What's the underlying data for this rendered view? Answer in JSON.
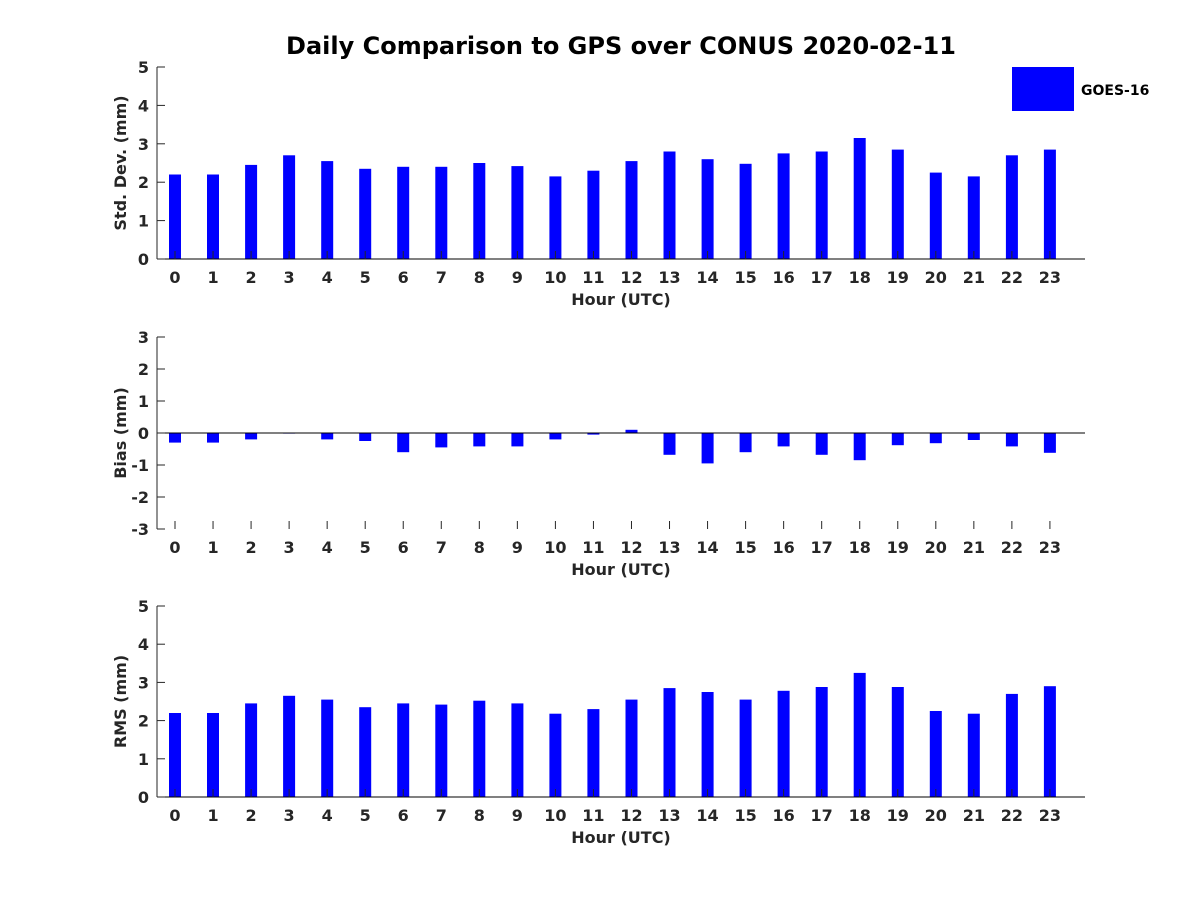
{
  "colors": {
    "bar": "#0000ff",
    "axis": "#262626"
  },
  "chart_data": {
    "title": "Daily Comparison to GPS over CONUS 2020-02-11",
    "legend": {
      "label": "GOES-16",
      "placement": "top-right"
    },
    "panels": [
      {
        "type": "bar",
        "ylabel": "Std. Dev. (mm)",
        "xlabel": "Hour (UTC)",
        "ylim": [
          0,
          5
        ],
        "yticks": [
          0,
          1,
          2,
          3,
          4,
          5
        ],
        "categories": [
          "0",
          "1",
          "2",
          "3",
          "4",
          "5",
          "6",
          "7",
          "8",
          "9",
          "10",
          "11",
          "12",
          "13",
          "14",
          "15",
          "16",
          "17",
          "18",
          "19",
          "20",
          "21",
          "22",
          "23"
        ],
        "series": [
          {
            "name": "GOES-16",
            "values": [
              2.2,
              2.2,
              2.45,
              2.7,
              2.55,
              2.35,
              2.4,
              2.4,
              2.5,
              2.42,
              2.15,
              2.3,
              2.55,
              2.8,
              2.6,
              2.48,
              2.75,
              2.8,
              3.15,
              2.85,
              2.25,
              2.15,
              2.7,
              2.85
            ]
          }
        ]
      },
      {
        "type": "bar",
        "ylabel": "Bias (mm)",
        "xlabel": "Hour (UTC)",
        "ylim": [
          -3,
          3
        ],
        "yticks": [
          -3,
          -2,
          -1,
          0,
          1,
          2,
          3
        ],
        "categories": [
          "0",
          "1",
          "2",
          "3",
          "4",
          "5",
          "6",
          "7",
          "8",
          "9",
          "10",
          "11",
          "12",
          "13",
          "14",
          "15",
          "16",
          "17",
          "18",
          "19",
          "20",
          "21",
          "22",
          "23"
        ],
        "series": [
          {
            "name": "GOES-16",
            "values": [
              -0.3,
              -0.3,
              -0.2,
              -0.02,
              -0.2,
              -0.25,
              -0.6,
              -0.45,
              -0.42,
              -0.42,
              -0.2,
              -0.05,
              0.1,
              -0.68,
              -0.95,
              -0.6,
              -0.42,
              -0.68,
              -0.85,
              -0.38,
              -0.32,
              -0.22,
              -0.42,
              -0.62
            ]
          }
        ]
      },
      {
        "type": "bar",
        "ylabel": "RMS (mm)",
        "xlabel": "Hour (UTC)",
        "ylim": [
          0,
          5
        ],
        "yticks": [
          0,
          1,
          2,
          3,
          4,
          5
        ],
        "categories": [
          "0",
          "1",
          "2",
          "3",
          "4",
          "5",
          "6",
          "7",
          "8",
          "9",
          "10",
          "11",
          "12",
          "13",
          "14",
          "15",
          "16",
          "17",
          "18",
          "19",
          "20",
          "21",
          "22",
          "23"
        ],
        "series": [
          {
            "name": "GOES-16",
            "values": [
              2.2,
              2.2,
              2.45,
              2.65,
              2.55,
              2.35,
              2.45,
              2.42,
              2.52,
              2.45,
              2.18,
              2.3,
              2.55,
              2.85,
              2.75,
              2.55,
              2.78,
              2.88,
              3.25,
              2.88,
              2.25,
              2.18,
              2.7,
              2.9
            ]
          }
        ]
      }
    ]
  }
}
